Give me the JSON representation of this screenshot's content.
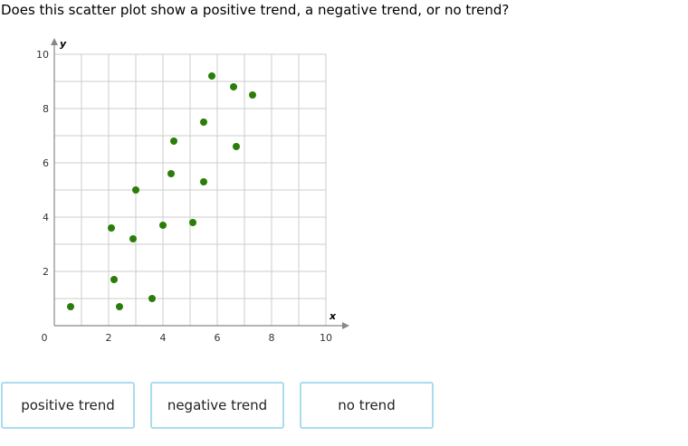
{
  "question": "Does this scatter plot show a positive trend, a negative trend, or no trend?",
  "chart_data": {
    "type": "scatter",
    "title": "",
    "xlabel": "x",
    "ylabel": "y",
    "xlim": [
      0,
      10
    ],
    "ylim": [
      0,
      10
    ],
    "xticks": [
      0,
      2,
      4,
      6,
      8,
      10
    ],
    "yticks": [
      2,
      4,
      6,
      8,
      10
    ],
    "grid": true,
    "grid_step": 1,
    "point_color": "#2a7d0a",
    "points": [
      {
        "x": 0.6,
        "y": 0.7
      },
      {
        "x": 2.1,
        "y": 3.6
      },
      {
        "x": 2.2,
        "y": 1.7
      },
      {
        "x": 2.4,
        "y": 0.7
      },
      {
        "x": 2.9,
        "y": 3.2
      },
      {
        "x": 3.0,
        "y": 5.0
      },
      {
        "x": 3.6,
        "y": 1.0
      },
      {
        "x": 4.0,
        "y": 3.7
      },
      {
        "x": 4.3,
        "y": 5.6
      },
      {
        "x": 4.4,
        "y": 6.8
      },
      {
        "x": 5.1,
        "y": 3.8
      },
      {
        "x": 5.5,
        "y": 5.3
      },
      {
        "x": 5.5,
        "y": 7.5
      },
      {
        "x": 5.8,
        "y": 9.2
      },
      {
        "x": 6.6,
        "y": 8.8
      },
      {
        "x": 6.7,
        "y": 6.6
      },
      {
        "x": 7.3,
        "y": 8.5
      }
    ]
  },
  "choices": [
    "positive trend",
    "negative trend",
    "no trend"
  ],
  "colors": {
    "choice_border": "#aadcee",
    "grid": "#cccccc",
    "axis": "#888888"
  }
}
